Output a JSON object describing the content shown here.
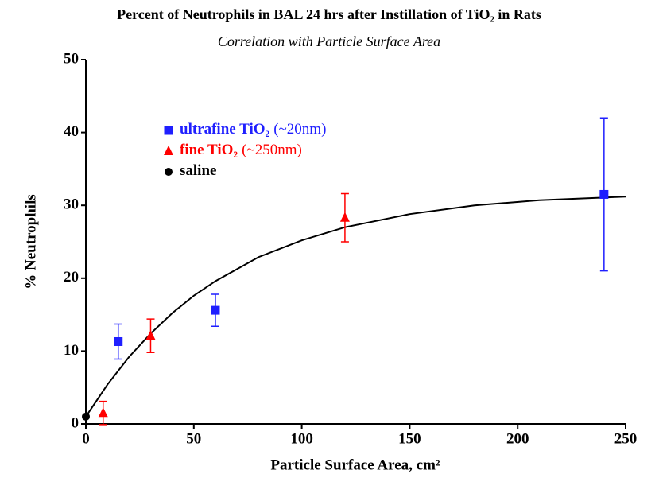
{
  "chart_data": {
    "type": "scatter",
    "title": "Percent of Neutrophils in BAL 24 hrs after Instillation of TiO₂ in Rats",
    "subtitle": "Correlation with Particle Surface Area",
    "x_label": "Particle Surface Area, cm²",
    "y_label": "% Neutrophils",
    "xlim": [
      0,
      250
    ],
    "xticks": [
      0,
      50,
      100,
      150,
      200,
      250
    ],
    "ylim": [
      0,
      50
    ],
    "yticks": [
      0,
      10,
      20,
      30,
      40,
      50
    ],
    "series": [
      {
        "name": "ultrafine TiO₂",
        "size_label": "(~20nm)",
        "color": "#1f1fff",
        "marker": "square",
        "x": [
          15,
          60,
          240
        ],
        "values": [
          11.3,
          15.6,
          31.5
        ],
        "errors": [
          2.4,
          2.2,
          10.5
        ]
      },
      {
        "name": "fine TiO₂",
        "size_label": "(~250nm)",
        "color": "#ff0000",
        "marker": "triangle",
        "x": [
          8,
          30,
          120
        ],
        "values": [
          1.5,
          12.1,
          28.3
        ],
        "errors": [
          1.6,
          2.3,
          3.3
        ]
      },
      {
        "name": "saline",
        "color": "#000000",
        "marker": "circle",
        "x": [
          0
        ],
        "values": [
          1
        ]
      }
    ],
    "curve": {
      "color": "#000000",
      "x": [
        0,
        10,
        20,
        30,
        40,
        50,
        60,
        80,
        100,
        120,
        150,
        180,
        210,
        250
      ],
      "values": [
        1,
        5.4,
        9.2,
        12.4,
        15.2,
        17.6,
        19.6,
        22.9,
        25.2,
        27.0,
        28.8,
        30.0,
        30.7,
        31.2
      ]
    }
  }
}
